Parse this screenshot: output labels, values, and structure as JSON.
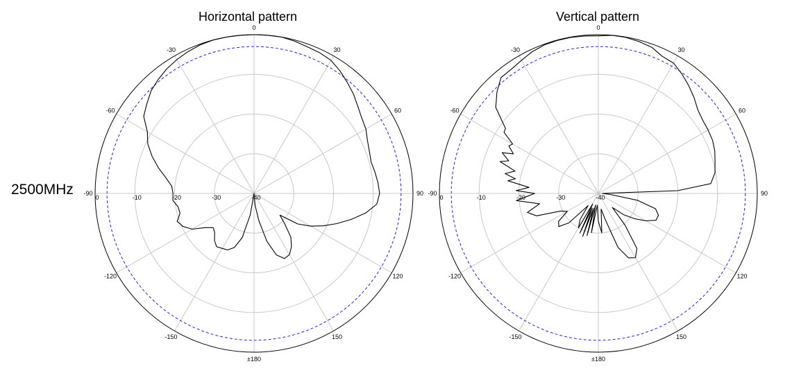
{
  "frequency_label": "2500MHz",
  "chart_data": [
    {
      "type": "polar",
      "title": "Horizontal pattern",
      "angle_tick_labels": [
        "0",
        "30",
        "60",
        "90",
        "120",
        "150",
        "±180",
        "-150",
        "-120",
        "-90",
        "-60",
        "-30"
      ],
      "radial_tick_labels": [
        "0",
        "-10",
        "-20",
        "-30",
        "-40"
      ],
      "radial_range_db": [
        -40,
        0
      ],
      "reference_circle_db": -3,
      "grid": true,
      "colors": {
        "pattern": "#000000",
        "reference": "#2222dd",
        "grid": "#c8c8c8",
        "outer": "#000000"
      },
      "series": [
        {
          "angles_deg": [
            -180,
            -170,
            -165,
            -160,
            -155,
            -150,
            -145,
            -140,
            -135,
            -130,
            -125,
            -120,
            -115,
            -110,
            -105,
            -100,
            -95,
            -90,
            -85,
            -80,
            -75,
            -70,
            -65,
            -60,
            -55,
            -50,
            -45,
            -40,
            -35,
            -30,
            -25,
            -20,
            -15,
            -10,
            -5,
            0,
            5,
            10,
            15,
            20,
            25,
            30,
            35,
            40,
            45,
            50,
            55,
            60,
            65,
            70,
            75,
            80,
            85,
            90,
            95,
            100,
            105,
            110,
            115,
            120,
            125,
            130,
            135,
            140,
            145,
            150,
            155,
            160,
            165,
            170,
            175,
            180
          ],
          "values_db": [
            -40,
            -34.5,
            -28.5,
            -25.5,
            -24.3,
            -24,
            -23.6,
            -24.5,
            -26,
            -26.6,
            -25,
            -22,
            -20.3,
            -19.4,
            -20.7,
            -20.6,
            -19.5,
            -19.6,
            -19.2,
            -17.5,
            -15.1,
            -12.7,
            -10.5,
            -9,
            -6.1,
            -4.8,
            -3.4,
            -2.5,
            -1.7,
            -1.1,
            -0.6,
            -0.2,
            0,
            0,
            0,
            0,
            0,
            0,
            -0.3,
            -0.7,
            -0.9,
            -1.3,
            -2.3,
            -3.5,
            -4.6,
            -5.9,
            -6.9,
            -7.5,
            -8.5,
            -9.1,
            -9.5,
            -9.1,
            -8.7,
            -8.4,
            -9,
            -11.5,
            -14.7,
            -17.8,
            -20.7,
            -23.5,
            -26.6,
            -31.5,
            -29,
            -25.6,
            -23.6,
            -22.2,
            -21.9,
            -23.5,
            -27.5,
            -33,
            -37,
            -40
          ]
        }
      ]
    },
    {
      "type": "polar",
      "title": "Vertical pattern",
      "angle_tick_labels": [
        "0",
        "30",
        "60",
        "90",
        "120",
        "150",
        "±180",
        "-150",
        "-120",
        "-90",
        "-60",
        "-30"
      ],
      "radial_tick_labels": [
        "0",
        "-10",
        "-20",
        "-30",
        "-40"
      ],
      "radial_range_db": [
        -40,
        0
      ],
      "reference_circle_db": -3,
      "grid": true,
      "colors": {
        "pattern": "#000000",
        "reference": "#2222dd",
        "grid": "#c8c8c8",
        "outer": "#000000"
      },
      "series": [
        {
          "angles_deg": [
            -180,
            -175,
            -170,
            -167,
            -165,
            -162,
            -160,
            -157,
            -155,
            -152,
            -150,
            -145,
            -140,
            -135,
            -130,
            -125,
            -120,
            -115,
            -110,
            -105,
            -100,
            -95,
            -90,
            -88,
            -85,
            -82,
            -80,
            -78,
            -75,
            -72,
            -70,
            -67,
            -65,
            -62,
            -60,
            -57,
            -55,
            -50,
            -45,
            -40,
            -35,
            -30,
            -25,
            -20,
            -15,
            -10,
            -5,
            0,
            5,
            10,
            15,
            20,
            25,
            30,
            35,
            40,
            45,
            50,
            55,
            60,
            65,
            70,
            75,
            80,
            85,
            88,
            90,
            95,
            100,
            105,
            110,
            115,
            120,
            125,
            130,
            135,
            140,
            145,
            150,
            155,
            160,
            165,
            170,
            175,
            180
          ],
          "values_db": [
            -33,
            -37,
            -30,
            -37,
            -29,
            -36,
            -28.5,
            -36,
            -29,
            -37,
            -30,
            -32,
            -36,
            -29.5,
            -27,
            -27.8,
            -31,
            -29.5,
            -23.5,
            -21.5,
            -25,
            -19.3,
            -24,
            -19.3,
            -22.5,
            -17,
            -18.8,
            -16,
            -18.3,
            -14,
            -16,
            -13.7,
            -16.4,
            -14.5,
            -15.1,
            -11.7,
            -11.5,
            -6.3,
            -3.9,
            -1.9,
            -1.8,
            -1.3,
            -0.6,
            -0.2,
            -0.1,
            -0.1,
            -0.2,
            -0.3,
            0,
            -0.1,
            -0.4,
            -0.8,
            -1.9,
            -2.1,
            -3.3,
            -4.6,
            -5.9,
            -7.3,
            -7.9,
            -8.1,
            -8.3,
            -8.8,
            -9.6,
            -10.2,
            -11.6,
            -20,
            -39,
            -37,
            -30,
            -25.1,
            -23.9,
            -24,
            -26.2,
            -28.9,
            -31.6,
            -35,
            -29.5,
            -23.1,
            -21.3,
            -22.1,
            -25.5,
            -33,
            -36,
            -30,
            -33
          ]
        }
      ]
    }
  ]
}
